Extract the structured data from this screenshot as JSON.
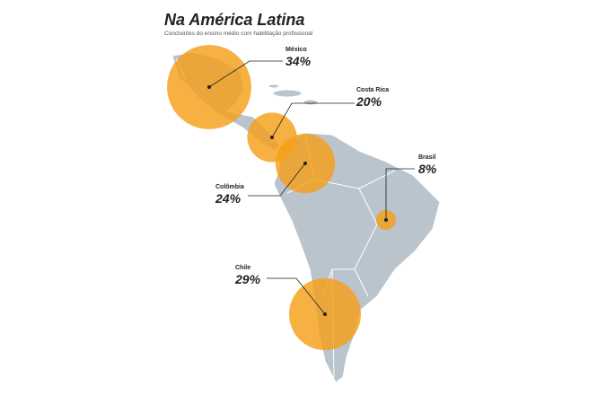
{
  "header": {
    "title": "Na América Latina",
    "subtitle": "Concluintes do ensino médio com habilitação profissional"
  },
  "map": {
    "names": [
      "México",
      "Costa Rica",
      "Colômbia",
      "Brasil",
      "Chile"
    ],
    "values": [
      34,
      20,
      24,
      8,
      29
    ],
    "value_labels": [
      "34%",
      "20%",
      "24%",
      "8%",
      "29%"
    ],
    "color": "#f5a01a"
  }
}
